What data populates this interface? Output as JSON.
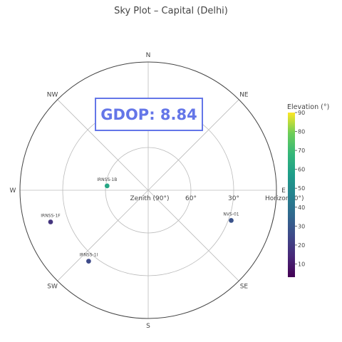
{
  "chart_data": {
    "type": "scatter",
    "subtype": "polar-skyplot",
    "title": "Sky Plot – Capital (Delhi)",
    "radial_axis": {
      "quantity": "elevation_deg",
      "range": [
        0,
        90
      ],
      "reversed": true,
      "rings": [
        {
          "elevation": 90,
          "label": "Zenith (90°)"
        },
        {
          "elevation": 60,
          "label": "60°"
        },
        {
          "elevation": 30,
          "label": "30°"
        },
        {
          "elevation": 0,
          "label": "Horizon (0°)"
        }
      ]
    },
    "angular_axis": {
      "quantity": "azimuth_deg",
      "direction": "clockwise",
      "rotation": "north-up",
      "labels": [
        {
          "azimuth": 0,
          "label": "N"
        },
        {
          "azimuth": 45,
          "label": "NE"
        },
        {
          "azimuth": 90,
          "label": "E"
        },
        {
          "azimuth": 135,
          "label": "SE"
        },
        {
          "azimuth": 180,
          "label": "S"
        },
        {
          "azimuth": 225,
          "label": "SW"
        },
        {
          "azimuth": 270,
          "label": "W"
        },
        {
          "azimuth": 315,
          "label": "NW"
        }
      ]
    },
    "grid": true,
    "points": [
      {
        "name": "IRNSS-1B",
        "azimuth": 276,
        "elevation": 61
      },
      {
        "name": "NVS-01",
        "azimuth": 110,
        "elevation": 28
      },
      {
        "name": "IRNSS-1F",
        "azimuth": 252,
        "elevation": 18
      },
      {
        "name": "IRNSS-1I",
        "azimuth": 220,
        "elevation": 25
      }
    ],
    "colorbar": {
      "title": "Elevation (°)",
      "range": [
        3,
        90
      ],
      "colorscale": "viridis",
      "ticks": [
        10,
        20,
        30,
        40,
        50,
        60,
        70,
        80,
        90
      ],
      "placement": "right"
    },
    "annotation": {
      "text": "GDOP: 8.84",
      "placement": "upper-center"
    }
  },
  "colors": {
    "annotation_text": "#6476e8",
    "annotation_border": "#6476e8",
    "grid": "#bbbbbb",
    "outer_ring": "#444444",
    "text": "#444444"
  }
}
